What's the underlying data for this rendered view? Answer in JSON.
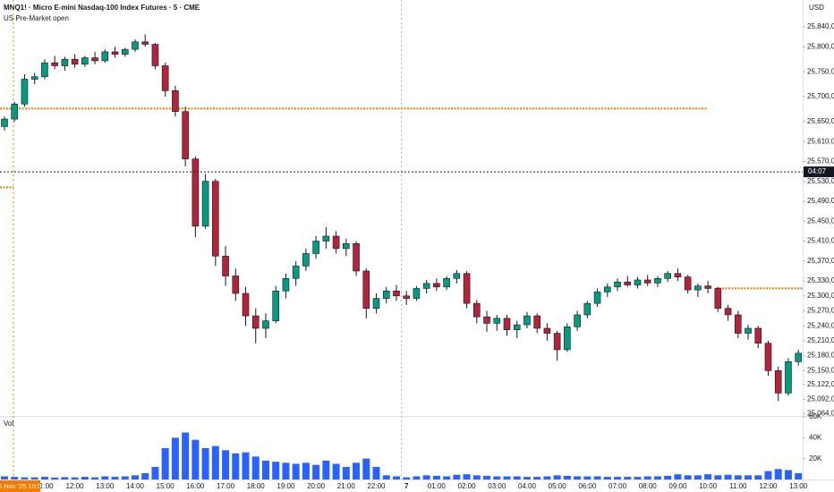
{
  "chart_data": {
    "type": "candlestick",
    "title": "MNQ1! · Micro E-mini Nasdaq-100 Index Futures · 5 · CME",
    "subtitle": "US Pre-Market open",
    "currency": "USD",
    "up_color": "#089981",
    "down_color": "#b2243a",
    "volume_color": "#2962ff",
    "level_color": "#f57c00",
    "volume_label": "Vol",
    "session_marker": {
      "label": "06 Nov '25  10:00"
    },
    "crosshair": {
      "value": 25549,
      "label": "04:07"
    },
    "levels": [
      25676,
      25315,
      25518
    ],
    "categories": [
      null,
      null,
      null,
      null,
      "11:00",
      null,
      null,
      "12:00",
      null,
      null,
      "13:00",
      null,
      null,
      "14:00",
      null,
      null,
      "15:00",
      null,
      null,
      "16:00",
      null,
      null,
      "17:00",
      null,
      null,
      "18:00",
      null,
      null,
      "19:00",
      null,
      null,
      "20:00",
      null,
      null,
      "21:00",
      null,
      null,
      "22:00",
      null,
      null,
      "7",
      null,
      null,
      "01:00",
      null,
      null,
      "02:00",
      null,
      null,
      "03:00",
      null,
      null,
      "04:00",
      null,
      null,
      "05:00",
      null,
      null,
      "06:00",
      null,
      null,
      "07:00",
      null,
      null,
      "08:00",
      null,
      null,
      "09:00",
      null,
      null,
      "10:00",
      null,
      null,
      "11:00",
      null,
      null,
      "12:00",
      null,
      null,
      "13:00"
    ],
    "open": [
      25640,
      25655,
      25685,
      25735,
      25740,
      25768,
      25762,
      25775,
      25765,
      25778,
      25772,
      25790,
      25785,
      25795,
      25810,
      25805,
      25762,
      25712,
      25670,
      25575,
      25440,
      25530,
      25380,
      25340,
      25305,
      25260,
      25235,
      25250,
      25310,
      25335,
      25360,
      25385,
      25410,
      25420,
      25395,
      25405,
      25350,
      25275,
      25295,
      25310,
      25300,
      25295,
      25315,
      25325,
      25318,
      25335,
      25345,
      25285,
      25258,
      25245,
      25255,
      25232,
      25242,
      25260,
      25235,
      25225,
      25192,
      25238,
      25262,
      25285,
      25308,
      25318,
      25328,
      25322,
      25332,
      25326,
      25335,
      25345,
      25338,
      25312,
      25320,
      25315,
      25275,
      25262,
      25225,
      25235,
      25205,
      25150,
      25105,
      25168
    ],
    "high": [
      25660,
      25690,
      25745,
      25748,
      25775,
      25782,
      25780,
      25785,
      25782,
      25790,
      25795,
      25800,
      25798,
      25815,
      25825,
      25808,
      25768,
      25722,
      25680,
      25580,
      25545,
      25535,
      25400,
      25355,
      25318,
      25275,
      25265,
      25320,
      25345,
      25370,
      25395,
      25420,
      25438,
      25430,
      25415,
      25410,
      25355,
      25305,
      25318,
      25322,
      25310,
      25320,
      25332,
      25335,
      25340,
      25352,
      25350,
      25292,
      25270,
      25262,
      25262,
      25250,
      25268,
      25265,
      25245,
      25230,
      25245,
      25270,
      25290,
      25315,
      25325,
      25335,
      25340,
      25338,
      25342,
      25340,
      25350,
      25355,
      25342,
      25325,
      25330,
      25318,
      25282,
      25270,
      25242,
      25240,
      25210,
      25158,
      25175,
      25192
    ],
    "low": [
      25632,
      25650,
      25680,
      25725,
      25735,
      25755,
      25752,
      25758,
      25760,
      25765,
      25768,
      25778,
      25780,
      25790,
      25800,
      25755,
      25700,
      25660,
      25560,
      25418,
      25435,
      25360,
      25320,
      25290,
      25240,
      25205,
      25215,
      25245,
      25295,
      25320,
      25350,
      25375,
      25395,
      25385,
      25380,
      25340,
      25255,
      25265,
      25285,
      25290,
      25282,
      25290,
      25305,
      25310,
      25312,
      25325,
      25275,
      25245,
      25228,
      25230,
      25220,
      25215,
      25235,
      25225,
      25210,
      25170,
      25188,
      25230,
      25255,
      25278,
      25298,
      25310,
      25318,
      25315,
      25320,
      25318,
      25328,
      25330,
      25305,
      25298,
      25305,
      25268,
      25250,
      25215,
      25212,
      25195,
      25140,
      25089,
      25100,
      25160
    ],
    "close": [
      25655,
      25685,
      25735,
      25740,
      25768,
      25762,
      25775,
      25765,
      25778,
      25772,
      25790,
      25785,
      25795,
      25810,
      25805,
      25762,
      25712,
      25670,
      25575,
      25440,
      25530,
      25380,
      25340,
      25305,
      25260,
      25235,
      25250,
      25310,
      25335,
      25360,
      25385,
      25410,
      25420,
      25395,
      25405,
      25350,
      25275,
      25295,
      25310,
      25300,
      25295,
      25315,
      25325,
      25318,
      25335,
      25345,
      25285,
      25258,
      25245,
      25255,
      25232,
      25242,
      25260,
      25235,
      25225,
      25192,
      25238,
      25262,
      25285,
      25308,
      25318,
      25328,
      25322,
      25332,
      25326,
      25335,
      25345,
      25338,
      25312,
      25320,
      25315,
      25275,
      25262,
      25225,
      25235,
      25205,
      25150,
      25105,
      25168,
      25185
    ],
    "volume": [
      3000,
      2500,
      2000,
      2000,
      2500,
      1800,
      2200,
      2000,
      2500,
      2000,
      3000,
      2500,
      3000,
      4000,
      6000,
      12000,
      30000,
      40000,
      45000,
      38000,
      30000,
      32000,
      28000,
      25000,
      26000,
      22000,
      18000,
      17000,
      16000,
      15000,
      16000,
      14000,
      18000,
      15000,
      12000,
      16000,
      20000,
      12000,
      4000,
      3000,
      2000,
      3000,
      4000,
      3500,
      3000,
      4500,
      5000,
      4000,
      3500,
      3000,
      3000,
      3000,
      2500,
      2500,
      3000,
      4000,
      3500,
      3000,
      3000,
      3000,
      2500,
      2500,
      2500,
      2500,
      3000,
      3000,
      3500,
      5000,
      4000,
      4000,
      5000,
      4000,
      4500,
      4000,
      4000,
      4000,
      8000,
      10000,
      9000,
      6000
    ],
    "ylim": [
      25059,
      25894
    ],
    "yticks": [
      {
        "value": 25840,
        "label": "25,840,00"
      },
      {
        "value": 25800,
        "label": "25,800,00"
      },
      {
        "value": 25750,
        "label": "25,750,00"
      },
      {
        "value": 25700,
        "label": "25,700,00"
      },
      {
        "value": 25650,
        "label": "25,650,00"
      },
      {
        "value": 25610,
        "label": "25,610,00"
      },
      {
        "value": 25570,
        "label": "25,570,00"
      },
      {
        "value": 25530,
        "label": "25,530,00"
      },
      {
        "value": 25490,
        "label": "25,490,00"
      },
      {
        "value": 25450,
        "label": "25,450,00"
      },
      {
        "value": 25410,
        "label": "25,410,00"
      },
      {
        "value": 25370,
        "label": "25,370,00"
      },
      {
        "value": 25330,
        "label": "25,330,00"
      },
      {
        "value": 25300,
        "label": "25,300,00"
      },
      {
        "value": 25270,
        "label": "25,270,00"
      },
      {
        "value": 25240,
        "label": "25,240,00"
      },
      {
        "value": 25210,
        "label": "25,210,00"
      },
      {
        "value": 25180,
        "label": "25,180,00"
      },
      {
        "value": 25150,
        "label": "25,150,00"
      },
      {
        "value": 25122,
        "label": "25,122,00"
      },
      {
        "value": 25092,
        "label": "25,092,00"
      },
      {
        "value": 25064,
        "label": "25,064,00"
      }
    ],
    "volume_ylim": [
      0,
      60000
    ],
    "volume_yticks": [
      {
        "value": 60000,
        "label": "60K"
      },
      {
        "value": 40000,
        "label": "40K"
      },
      {
        "value": 20000,
        "label": "20K"
      }
    ]
  }
}
